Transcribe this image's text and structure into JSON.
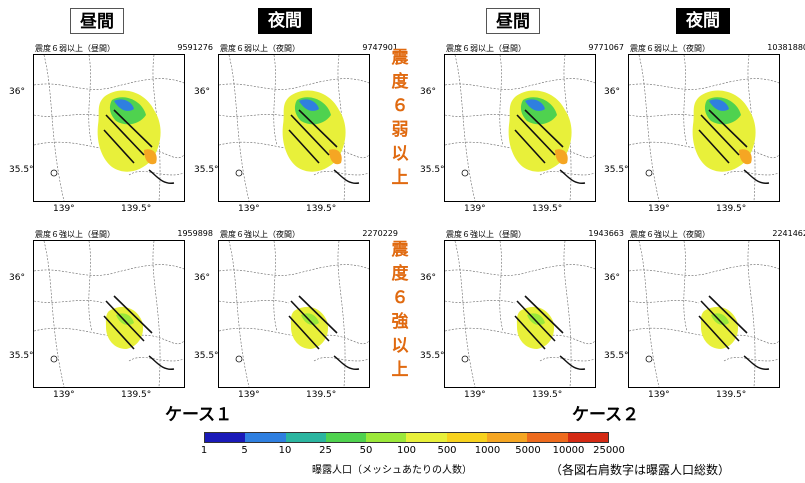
{
  "headers": [
    "昼間",
    "夜間",
    "昼間",
    "夜間"
  ],
  "panels": [
    {
      "title": "震度６弱以上（昼間）",
      "count": "9591276",
      "size": "big"
    },
    {
      "title": "震度６弱以上（夜間）",
      "count": "9747901",
      "size": "big"
    },
    {
      "title": "震度６弱以上（昼間）",
      "count": "9771067",
      "size": "big"
    },
    {
      "title": "震度６弱以上（夜間）",
      "count": "10381880",
      "size": "big"
    },
    {
      "title": "震度６強以上（昼間）",
      "count": "1959898",
      "size": "small"
    },
    {
      "title": "震度６強以上（夜間）",
      "count": "2270229",
      "size": "small"
    },
    {
      "title": "震度６強以上（昼間）",
      "count": "1943663",
      "size": "small"
    },
    {
      "title": "震度６強以上（夜間）",
      "count": "2241462",
      "size": "small"
    }
  ],
  "axis": {
    "y_top": "36°",
    "y_bottom": "35.5°",
    "x_left": "139°",
    "x_right": "139.5°"
  },
  "row_labels": {
    "upper": "震度６弱以上",
    "lower": "震度６強以上"
  },
  "cases": {
    "case1": "ケース１",
    "case2": "ケース２"
  },
  "colorbar": {
    "ticks": [
      "1",
      "5",
      "10",
      "25",
      "50",
      "100",
      "500",
      "1000",
      "5000",
      "10000",
      "25000"
    ],
    "colors": [
      "#1a1ab8",
      "#2f7fe0",
      "#2bb5a0",
      "#4fd24f",
      "#9be83a",
      "#e8f03a",
      "#f7d21e",
      "#f5a623",
      "#ee6b1e",
      "#d42a14"
    ],
    "title": "曝露人口（メッシュあたりの人数）"
  },
  "note": "（各図右肩数字は曝露人口総数）"
}
